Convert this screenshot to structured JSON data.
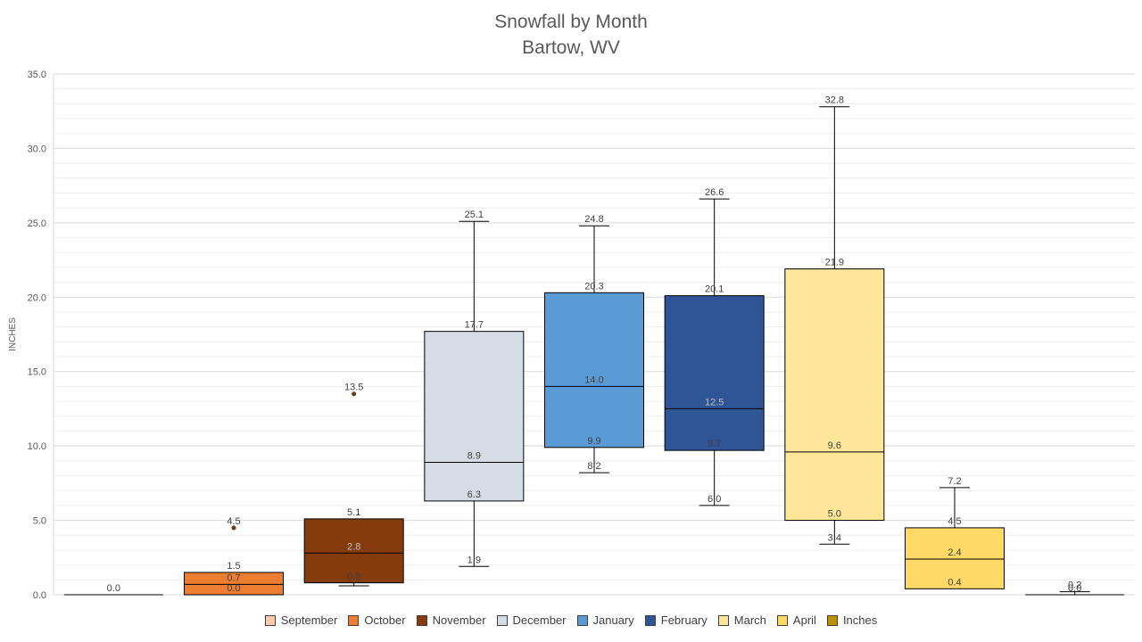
{
  "chart_data": {
    "type": "boxplot",
    "title": "Snowfall by Month",
    "subtitle": "Bartow, WV",
    "ylabel": "INCHES",
    "ylim": [
      0,
      35
    ],
    "yticks": [
      "0.0",
      "5.0",
      "10.0",
      "15.0",
      "20.0",
      "25.0",
      "30.0",
      "35.0"
    ],
    "grid": true,
    "legend_position": "bottom",
    "legend": [
      {
        "name": "September",
        "color": "#F8CBAD"
      },
      {
        "name": "October",
        "color": "#ED7D31"
      },
      {
        "name": "November",
        "color": "#843C0C"
      },
      {
        "name": "December",
        "color": "#D6DCE5"
      },
      {
        "name": "January",
        "color": "#5B9BD5"
      },
      {
        "name": "February",
        "color": "#2F5597"
      },
      {
        "name": "March",
        "color": "#FFE699"
      },
      {
        "name": "April",
        "color": "#FFD966"
      },
      {
        "name": "Inches",
        "color": "#BF9000"
      }
    ],
    "boxes": [
      {
        "name": "September",
        "min": 0.0,
        "q1": 0.0,
        "median": 0.0,
        "q3": 0.0,
        "max": 0.0,
        "outliers": [],
        "labels": [
          "0.0"
        ]
      },
      {
        "name": "October",
        "min": 0.0,
        "q1": 0.0,
        "median": 0.7,
        "q3": 1.5,
        "max": 1.5,
        "outliers": [
          4.5
        ],
        "labels": [
          "4.5",
          "1.5",
          "0.7",
          "0.0"
        ]
      },
      {
        "name": "November",
        "min": 0.6,
        "q1": 0.8,
        "median": 2.8,
        "q3": 5.1,
        "max": 5.1,
        "outliers": [
          13.5
        ],
        "labels": [
          "13.5",
          "5.1",
          "2.8",
          "0.8"
        ]
      },
      {
        "name": "December",
        "min": 1.9,
        "q1": 6.3,
        "median": 8.9,
        "q3": 17.7,
        "max": 25.1,
        "outliers": [],
        "labels": [
          "25.1",
          "17.7",
          "8.9",
          "6.3",
          "1.9"
        ]
      },
      {
        "name": "January",
        "min": 8.2,
        "q1": 9.9,
        "median": 14.0,
        "q3": 20.3,
        "max": 24.8,
        "outliers": [],
        "labels": [
          "24.8",
          "20.3",
          "14.0",
          "9.9",
          "8.2"
        ]
      },
      {
        "name": "February",
        "min": 6.0,
        "q1": 9.7,
        "median": 12.5,
        "q3": 20.1,
        "max": 26.6,
        "outliers": [],
        "labels": [
          "26.6",
          "20.1",
          "12.5",
          "9.7",
          "6.0"
        ]
      },
      {
        "name": "March",
        "min": 3.4,
        "q1": 5.0,
        "median": 9.6,
        "q3": 21.9,
        "max": 32.8,
        "outliers": [],
        "labels": [
          "32.8",
          "21.9",
          "9.6",
          "5.0",
          "3.4"
        ]
      },
      {
        "name": "April",
        "min": 0.4,
        "q1": 0.4,
        "median": 2.4,
        "q3": 4.5,
        "max": 7.2,
        "outliers": [],
        "labels": [
          "7.2",
          "4.5",
          "2.4",
          "0.4"
        ]
      },
      {
        "name": "Inches",
        "min": 0.0,
        "q1": 0.0,
        "median": 0.0,
        "q3": 0.0,
        "max": 0.2,
        "outliers": [],
        "labels": [
          "0.2",
          "0.0"
        ]
      }
    ]
  }
}
